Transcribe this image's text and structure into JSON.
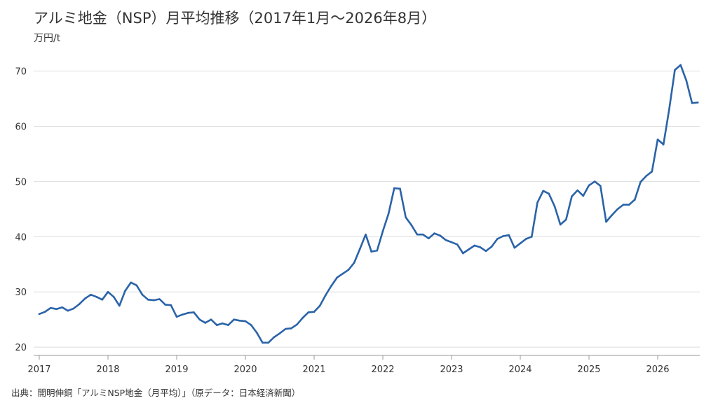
{
  "title": "アルミ地金（NSP）月平均推移（2017年1月〜2026年8月）",
  "unit": "万円/t",
  "source": "出典：開明伸銅「アルミNSP地金（月平均）」（原データ：日本経済新聞）",
  "colors": {
    "line": "#2a63a8",
    "grid": "#dddddd",
    "axis": "#999999"
  },
  "chart_data": {
    "type": "line",
    "title": "アルミ地金（NSP）月平均推移（2017年1月〜2026年8月）",
    "ylabel": "万円/t",
    "xlabel": "",
    "x_start": "2017-01",
    "x_end": "2026-08",
    "ylim": [
      18.5,
      74
    ],
    "y_ticks": [
      20,
      30,
      40,
      50,
      60,
      70
    ],
    "x_ticks": [
      "2017",
      "2018",
      "2019",
      "2020",
      "2021",
      "2022",
      "2023",
      "2024",
      "2025",
      "2026"
    ],
    "grid": true,
    "legend": "none",
    "series": [
      {
        "values": [
          26.0,
          26.4,
          27.1,
          26.9,
          27.2,
          26.6,
          27.0,
          27.8,
          28.8,
          29.5,
          29.1,
          28.6,
          30.0,
          29.1,
          27.5,
          30.2,
          31.7,
          31.2,
          29.5,
          28.6,
          28.5,
          28.7,
          27.7,
          27.6,
          25.5,
          25.9,
          26.2,
          26.3,
          25.0,
          24.4,
          25.0,
          24.0,
          24.3,
          24.0,
          25.0,
          24.8,
          24.7,
          24.0,
          22.6,
          20.8,
          20.8,
          21.8,
          22.5,
          23.3,
          23.4,
          24.1,
          25.3,
          26.3,
          26.4,
          27.5,
          29.4,
          31.1,
          32.6,
          33.3,
          34.0,
          35.3,
          37.8,
          40.4,
          37.3,
          37.5,
          41.0,
          44.2,
          48.8,
          48.7,
          43.5,
          42.1,
          40.4,
          40.4,
          39.7,
          40.6,
          40.2,
          39.4,
          39.0,
          38.6,
          37.0,
          37.7,
          38.4,
          38.1,
          37.4,
          38.2,
          39.6,
          40.1,
          40.3,
          38.0,
          38.8,
          39.6,
          40.0,
          46.2,
          48.3,
          47.8,
          45.5,
          42.2,
          43.1,
          47.3,
          48.4,
          47.4,
          49.3,
          50.0,
          49.2,
          42.7,
          43.9,
          45.0,
          45.8,
          45.8,
          46.7,
          49.9,
          51.0,
          51.8,
          57.6,
          56.7,
          63.0,
          70.2,
          71.1,
          68.3,
          64.2,
          64.3
        ]
      }
    ]
  }
}
